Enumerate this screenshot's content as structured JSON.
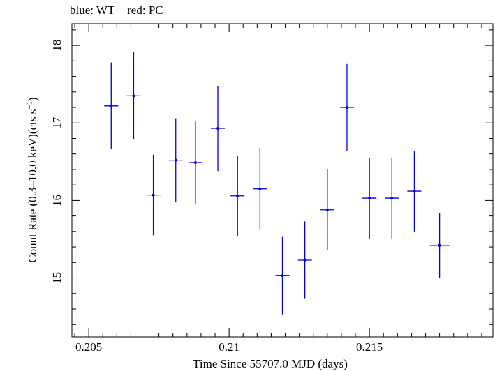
{
  "header_text": "blue: WT − red: PC",
  "chart_data": {
    "type": "scatter",
    "title": "blue: WT − red: PC",
    "xlabel": "Time Since 55707.0 MJD (days)",
    "ylabel_main": "Count Rate (0.3–10.0 keV)(cts s",
    "ylabel_sup": "−1",
    "ylabel_tail": ")",
    "xlim": [
      0.2044,
      0.2194
    ],
    "ylim": [
      14.24,
      18.28
    ],
    "xticks": [
      0.205,
      0.21,
      0.215
    ],
    "xtick_labels": [
      "0.205",
      "0.21",
      "0.215"
    ],
    "yticks": [
      15,
      16,
      17,
      18
    ],
    "ytick_labels": [
      "15",
      "16",
      "17",
      "18"
    ],
    "grid": false,
    "series": [
      {
        "color": "#0000dd",
        "points": [
          {
            "x": 0.2058,
            "xerr": 0.00025,
            "y": 17.22,
            "yerr": 0.56
          },
          {
            "x": 0.2066,
            "xerr": 0.00025,
            "y": 17.35,
            "yerr": 0.56
          },
          {
            "x": 0.2073,
            "xerr": 0.00025,
            "y": 16.07,
            "yerr": 0.52
          },
          {
            "x": 0.2081,
            "xerr": 0.00025,
            "y": 16.52,
            "yerr": 0.54
          },
          {
            "x": 0.2088,
            "xerr": 0.00025,
            "y": 16.49,
            "yerr": 0.54
          },
          {
            "x": 0.2096,
            "xerr": 0.00025,
            "y": 16.93,
            "yerr": 0.55
          },
          {
            "x": 0.2103,
            "xerr": 0.00025,
            "y": 16.06,
            "yerr": 0.52
          },
          {
            "x": 0.2111,
            "xerr": 0.00025,
            "y": 16.15,
            "yerr": 0.53
          },
          {
            "x": 0.2119,
            "xerr": 0.00025,
            "y": 15.03,
            "yerr": 0.5
          },
          {
            "x": 0.2127,
            "xerr": 0.00025,
            "y": 15.23,
            "yerr": 0.5
          },
          {
            "x": 0.2135,
            "xerr": 0.00025,
            "y": 15.88,
            "yerr": 0.52
          },
          {
            "x": 0.2142,
            "xerr": 0.00025,
            "y": 17.2,
            "yerr": 0.56
          },
          {
            "x": 0.215,
            "xerr": 0.00025,
            "y": 16.03,
            "yerr": 0.52
          },
          {
            "x": 0.2158,
            "xerr": 0.00025,
            "y": 16.03,
            "yerr": 0.52
          },
          {
            "x": 0.2166,
            "xerr": 0.00025,
            "y": 16.12,
            "yerr": 0.52
          },
          {
            "x": 0.2175,
            "xerr": 0.00035,
            "y": 15.42,
            "yerr": 0.42
          }
        ]
      }
    ]
  }
}
